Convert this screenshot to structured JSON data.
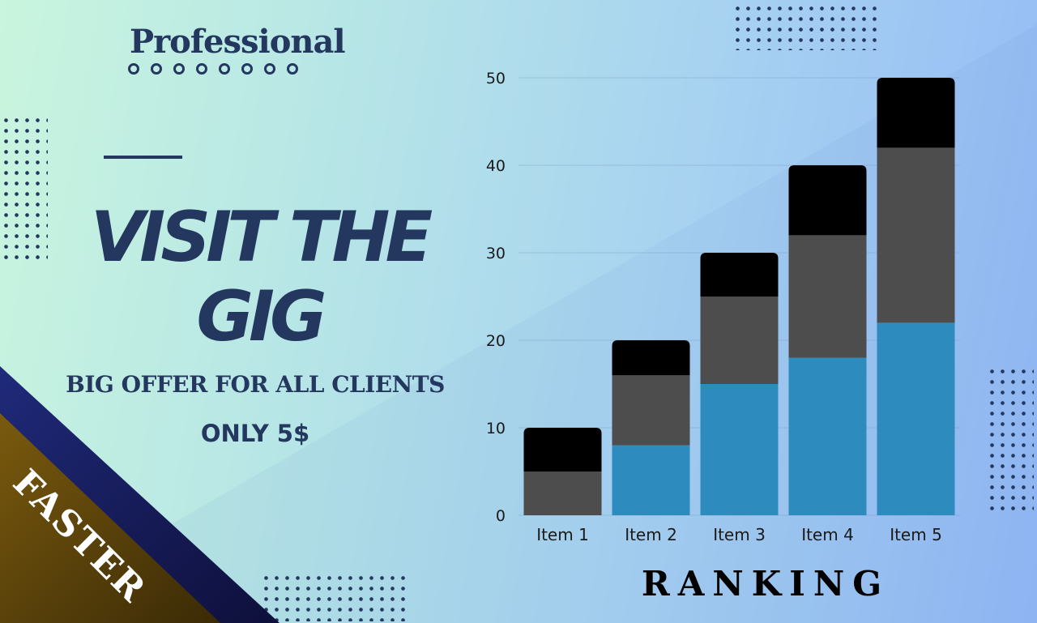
{
  "promo": {
    "brand": "Professional",
    "headline_line1": "VISIT THE",
    "headline_line2": "GIG",
    "offer": "BIG OFFER FOR ALL CLIENTS",
    "price": "ONLY 5$",
    "ribbon_label": "FASTER"
  },
  "colors": {
    "navy": "#23375f",
    "series_blue": "#2d8bbd",
    "series_gray": "#4d4d4d",
    "series_black": "#000000",
    "ribbon_navy": "#191a5e",
    "ribbon_gold": "#7a5a0e"
  },
  "chart_data": {
    "type": "bar",
    "stacked": true,
    "categories": [
      "Item 1",
      "Item 2",
      "Item 3",
      "Item 4",
      "Item 5"
    ],
    "series": [
      {
        "values": [
          0,
          8,
          15,
          18,
          22
        ]
      },
      {
        "values": [
          5,
          8,
          10,
          14,
          20
        ]
      },
      {
        "values": [
          5,
          4,
          5,
          8,
          8
        ]
      }
    ],
    "yticks": [
      0,
      10,
      20,
      30,
      40,
      50
    ],
    "ylim": [
      0,
      50
    ],
    "grid": true,
    "legend": "none",
    "caption": "RANKING"
  }
}
